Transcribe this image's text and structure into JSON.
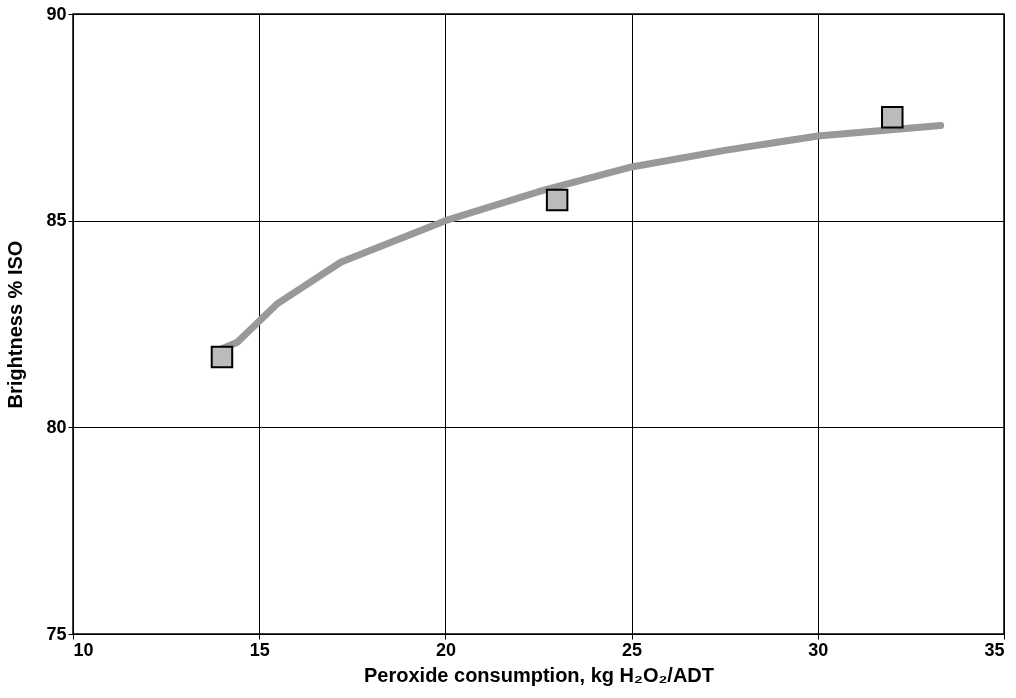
{
  "chart_data": {
    "type": "scatter",
    "xlabel": "Peroxide consumption, kg H₂O₂/ADT",
    "ylabel": "Brightness % ISO",
    "xlim": [
      10,
      35
    ],
    "ylim": [
      75,
      90
    ],
    "xticks": [
      10,
      15,
      20,
      25,
      30,
      35
    ],
    "yticks": [
      75,
      80,
      85,
      90
    ],
    "grid": true,
    "series": [
      {
        "type": "line",
        "color": "#999999",
        "x": [
          14.0,
          14.4,
          15.5,
          17.2,
          20,
          22.5,
          25,
          27.5,
          30,
          33.3
        ],
        "values": [
          81.9,
          82.05,
          83.0,
          84.0,
          85.0,
          85.7,
          86.3,
          86.7,
          87.05,
          87.3
        ]
      },
      {
        "color": "#bbbbbb",
        "marker": "square",
        "x": [
          14.0,
          23.0,
          32.0
        ],
        "values": [
          81.7,
          85.5,
          87.5
        ]
      }
    ]
  }
}
